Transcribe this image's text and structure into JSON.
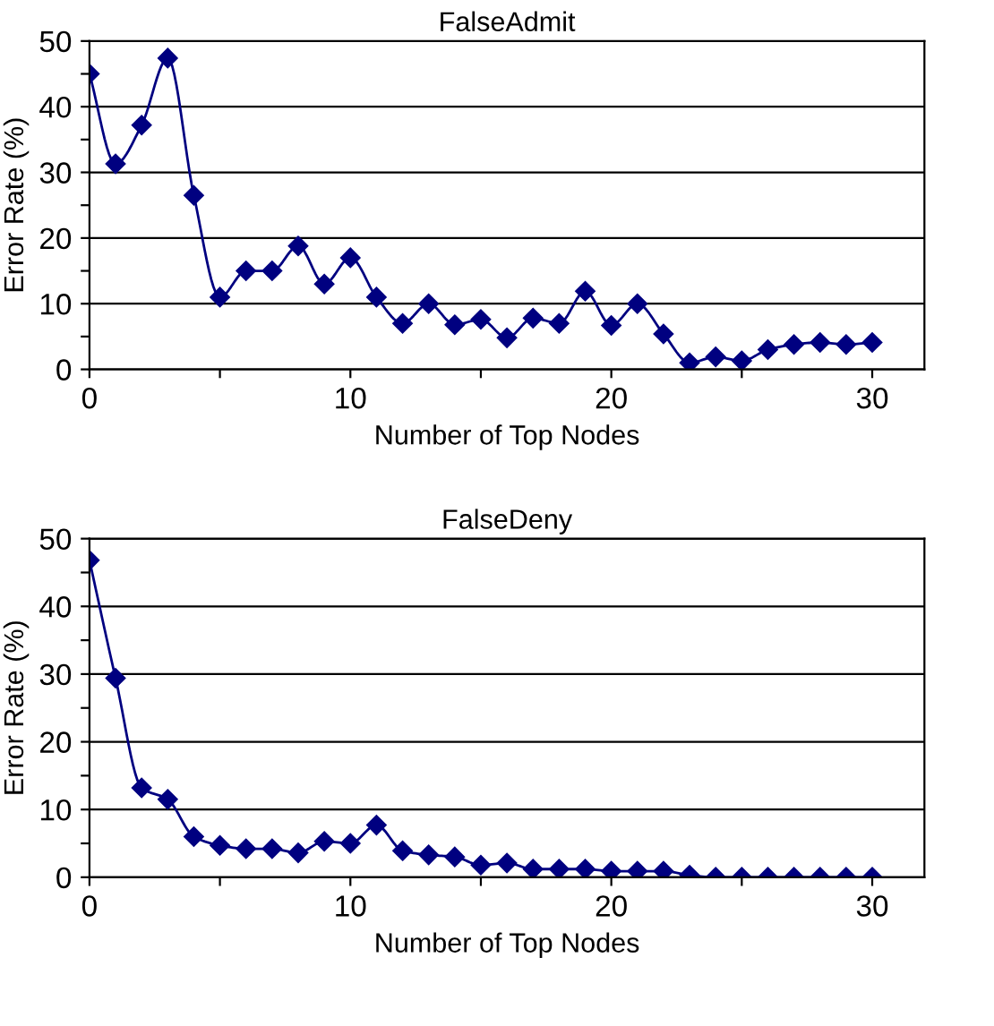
{
  "chart_data": [
    {
      "type": "line",
      "title": "FalseAdmit",
      "xlabel": "Number of Top Nodes",
      "ylabel": "Error Rate (%)",
      "x": [
        0,
        1,
        2,
        3,
        4,
        5,
        6,
        7,
        8,
        9,
        10,
        11,
        12,
        13,
        14,
        15,
        16,
        17,
        18,
        19,
        20,
        21,
        22,
        23,
        24,
        25,
        26,
        27,
        28,
        29,
        30
      ],
      "series": [
        {
          "color": "#000080",
          "values": [
            45,
            31.3,
            37.2,
            47.4,
            26.5,
            11,
            15,
            15,
            18.8,
            13,
            17,
            11,
            7,
            10,
            6.8,
            7.6,
            4.8,
            7.8,
            7,
            11.9,
            6.7,
            10,
            5.4,
            1,
            1.9,
            1.3,
            3,
            3.8,
            4.1,
            3.8,
            4.1
          ]
        }
      ],
      "xlim": [
        0,
        32
      ],
      "xticks": [
        0,
        {
          "value": 5,
          "label": null
        },
        10,
        {
          "value": 15,
          "label": null
        },
        20,
        {
          "value": 25,
          "label": null
        },
        30
      ],
      "ylim": [
        0,
        50
      ],
      "yticks": [
        0,
        {
          "value": 5,
          "label": null
        },
        10,
        {
          "value": 15,
          "label": null
        },
        20,
        {
          "value": 25,
          "label": null
        },
        30,
        {
          "value": 35,
          "label": null
        },
        40,
        {
          "value": 45,
          "label": null
        },
        50
      ],
      "grid": "y",
      "marker": "diamond",
      "line_style": "solid",
      "legend": false
    },
    {
      "type": "line",
      "title": "FalseDeny",
      "xlabel": "Number of Top Nodes",
      "ylabel": "Error Rate (%)",
      "x": [
        0,
        1,
        2,
        3,
        4,
        5,
        6,
        7,
        8,
        9,
        10,
        11,
        12,
        13,
        14,
        15,
        16,
        17,
        18,
        19,
        20,
        21,
        22,
        23,
        24,
        25,
        26,
        27,
        28,
        29,
        30
      ],
      "series": [
        {
          "color": "#000080",
          "values": [
            46.8,
            29.4,
            13.2,
            11.5,
            6,
            4.7,
            4.2,
            4.2,
            3.6,
            5.3,
            5,
            7.7,
            3.9,
            3.3,
            3,
            1.8,
            2.1,
            1.2,
            1.2,
            1.2,
            0.9,
            0.9,
            0.9,
            0.3,
            0,
            0,
            0,
            0,
            0,
            0,
            0
          ]
        }
      ],
      "xlim": [
        0,
        32
      ],
      "xticks": [
        0,
        {
          "value": 5,
          "label": null
        },
        10,
        {
          "value": 15,
          "label": null
        },
        20,
        {
          "value": 25,
          "label": null
        },
        30
      ],
      "ylim": [
        0,
        50
      ],
      "yticks": [
        0,
        {
          "value": 5,
          "label": null
        },
        10,
        {
          "value": 15,
          "label": null
        },
        20,
        {
          "value": 25,
          "label": null
        },
        30,
        {
          "value": 35,
          "label": null
        },
        40,
        {
          "value": 45,
          "label": null
        },
        50
      ],
      "grid": "y",
      "marker": "diamond",
      "line_style": "solid",
      "legend": false
    }
  ]
}
